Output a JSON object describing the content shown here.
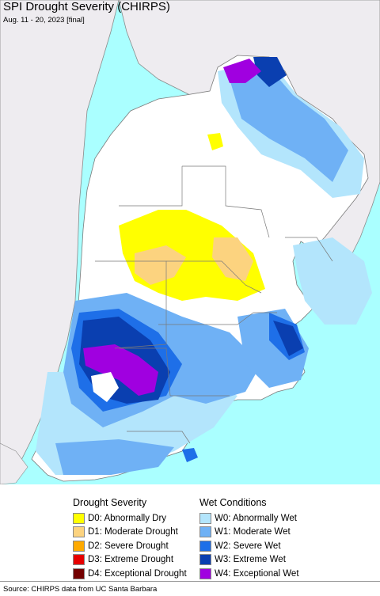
{
  "header": {
    "title": "SPI Drought Severity (CHIRPS)",
    "subtitle": "Aug. 11 - 20, 2023 [final]"
  },
  "colors": {
    "ocean": "#aaffff",
    "neighbor_land": "#eeecf0",
    "region_land": "#ffffff",
    "border": "#7a7a7a"
  },
  "legend": {
    "drought_title": "Drought Severity",
    "drought_items": [
      {
        "label": "D0: Abnormally Dry",
        "color": "#ffff00"
      },
      {
        "label": "D1: Moderate Drought",
        "color": "#fcd37f"
      },
      {
        "label": "D2: Severe Drought",
        "color": "#ffaa00"
      },
      {
        "label": "D3: Extreme Drought",
        "color": "#e60000"
      },
      {
        "label": "D4: Exceptional Drought",
        "color": "#730000"
      }
    ],
    "wet_title": "Wet Conditions",
    "wet_items": [
      {
        "label": "W0: Abnormally Wet",
        "color": "#b3e5fc"
      },
      {
        "label": "W1: Moderate Wet",
        "color": "#6fb1f5"
      },
      {
        "label": "W2: Severe Wet",
        "color": "#1e6fe8"
      },
      {
        "label": "W3: Extreme Wet",
        "color": "#0a3fb0"
      },
      {
        "label": "W4: Exceptional Wet",
        "color": "#a000e0"
      }
    ]
  },
  "footer": {
    "source": "Source: CHIRPS data from UC Santa Barbara"
  }
}
